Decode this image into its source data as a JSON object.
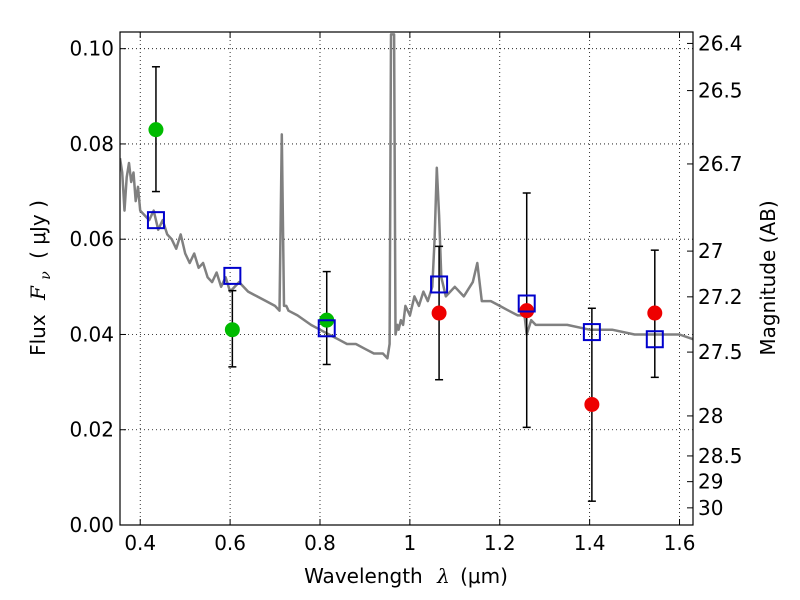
{
  "chart_data": {
    "type": "scatter",
    "xlabel_prefix": "Wavelength",
    "xlabel_symbol": "λ",
    "xlabel_unit": "(μm)",
    "ylabel_prefix": "Flux",
    "ylabel_symbol": "F",
    "ylabel_sub": "ν",
    "ylabel_unit": "( μJy )",
    "y2label": "Magnitude (AB)",
    "xlim": [
      0.355,
      1.63
    ],
    "ylim": [
      0.0,
      0.1035
    ],
    "grid": true,
    "x_ticks": [
      {
        "value": 0.4,
        "label": "0.4"
      },
      {
        "value": 0.6,
        "label": "0.6"
      },
      {
        "value": 0.8,
        "label": "0.8"
      },
      {
        "value": 1.0,
        "label": "1"
      },
      {
        "value": 1.2,
        "label": "1.2"
      },
      {
        "value": 1.4,
        "label": "1.4"
      },
      {
        "value": 1.6,
        "label": "1.6"
      }
    ],
    "y_ticks": [
      {
        "value": 0.0,
        "label": "0.00"
      },
      {
        "value": 0.02,
        "label": "0.02"
      },
      {
        "value": 0.04,
        "label": "0.04"
      },
      {
        "value": 0.06,
        "label": "0.06"
      },
      {
        "value": 0.08,
        "label": "0.08"
      },
      {
        "value": 0.1,
        "label": "0.10"
      }
    ],
    "y2_ticks": [
      {
        "flux": 0.1011,
        "label": "26.4"
      },
      {
        "flux": 0.0912,
        "label": "26.5"
      },
      {
        "flux": 0.0758,
        "label": "26.7"
      },
      {
        "flux": 0.0575,
        "label": "27"
      },
      {
        "flux": 0.0479,
        "label": "27.2"
      },
      {
        "flux": 0.0363,
        "label": "27.5"
      },
      {
        "flux": 0.0229,
        "label": "28"
      },
      {
        "flux": 0.0145,
        "label": "28.5"
      },
      {
        "flux": 0.0091,
        "label": "29"
      },
      {
        "flux": 0.0036,
        "label": "30"
      }
    ],
    "series": [
      {
        "name": "template-spectrum",
        "style": "line",
        "color": "#808080",
        "x": [
          0.355,
          0.36,
          0.365,
          0.37,
          0.375,
          0.38,
          0.385,
          0.39,
          0.395,
          0.4,
          0.41,
          0.42,
          0.43,
          0.44,
          0.45,
          0.46,
          0.47,
          0.48,
          0.49,
          0.5,
          0.51,
          0.52,
          0.53,
          0.54,
          0.55,
          0.56,
          0.57,
          0.58,
          0.59,
          0.6,
          0.62,
          0.64,
          0.66,
          0.68,
          0.7,
          0.71,
          0.715,
          0.72,
          0.725,
          0.73,
          0.75,
          0.78,
          0.8,
          0.82,
          0.84,
          0.86,
          0.88,
          0.9,
          0.92,
          0.94,
          0.95,
          0.955,
          0.958,
          0.961,
          0.963,
          0.965,
          0.968,
          0.972,
          0.975,
          0.98,
          0.985,
          0.99,
          1.0,
          1.01,
          1.02,
          1.03,
          1.04,
          1.05,
          1.055,
          1.06,
          1.065,
          1.07,
          1.075,
          1.08,
          1.09,
          1.1,
          1.12,
          1.14,
          1.15,
          1.16,
          1.18,
          1.2,
          1.22,
          1.24,
          1.255,
          1.26,
          1.27,
          1.28,
          1.3,
          1.35,
          1.4,
          1.45,
          1.5,
          1.55,
          1.6,
          1.63
        ],
        "y": [
          0.077,
          0.074,
          0.066,
          0.073,
          0.076,
          0.072,
          0.074,
          0.068,
          0.071,
          0.066,
          0.065,
          0.064,
          0.066,
          0.062,
          0.064,
          0.061,
          0.06,
          0.058,
          0.061,
          0.057,
          0.055,
          0.057,
          0.054,
          0.055,
          0.052,
          0.051,
          0.053,
          0.05,
          0.052,
          0.049,
          0.051,
          0.049,
          0.048,
          0.047,
          0.046,
          0.045,
          0.082,
          0.046,
          0.046,
          0.045,
          0.044,
          0.042,
          0.041,
          0.04,
          0.039,
          0.038,
          0.038,
          0.037,
          0.036,
          0.036,
          0.035,
          0.038,
          0.103,
          0.103,
          0.103,
          0.103,
          0.04,
          0.042,
          0.041,
          0.043,
          0.042,
          0.046,
          0.044,
          0.048,
          0.046,
          0.049,
          0.047,
          0.05,
          0.06,
          0.075,
          0.065,
          0.052,
          0.05,
          0.048,
          0.049,
          0.05,
          0.048,
          0.051,
          0.055,
          0.047,
          0.047,
          0.046,
          0.045,
          0.044,
          0.044,
          0.04,
          0.043,
          0.042,
          0.042,
          0.042,
          0.041,
          0.041,
          0.04,
          0.04,
          0.04,
          0.039
        ]
      },
      {
        "name": "green-detections",
        "style": "marker-circle",
        "color": "#00bb00",
        "x": [
          0.435,
          0.605,
          0.815
        ],
        "y": [
          0.083,
          0.041,
          0.043
        ]
      },
      {
        "name": "red-detections",
        "style": "marker-circle",
        "color": "#ee0000",
        "x": [
          1.065,
          1.26,
          1.405,
          1.545
        ],
        "y": [
          0.0445,
          0.045,
          0.0253,
          0.0445
        ]
      },
      {
        "name": "model-fluxes",
        "style": "marker-square",
        "color": "#0000cc",
        "x": [
          0.435,
          0.605,
          0.815,
          1.065,
          1.26,
          1.405,
          1.545
        ],
        "y": [
          0.064,
          0.0523,
          0.0413,
          0.0505,
          0.0465,
          0.0405,
          0.039
        ]
      }
    ],
    "errorbars": [
      {
        "x": 0.435,
        "low": 0.07,
        "high": 0.0962
      },
      {
        "x": 0.605,
        "low": 0.0332,
        "high": 0.0492
      },
      {
        "x": 0.815,
        "low": 0.0337,
        "high": 0.0532
      },
      {
        "x": 1.065,
        "low": 0.0305,
        "high": 0.0585
      },
      {
        "x": 1.26,
        "low": 0.0205,
        "high": 0.0697
      },
      {
        "x": 1.405,
        "low": 0.005,
        "high": 0.0455
      },
      {
        "x": 1.545,
        "low": 0.031,
        "high": 0.0577
      }
    ]
  }
}
